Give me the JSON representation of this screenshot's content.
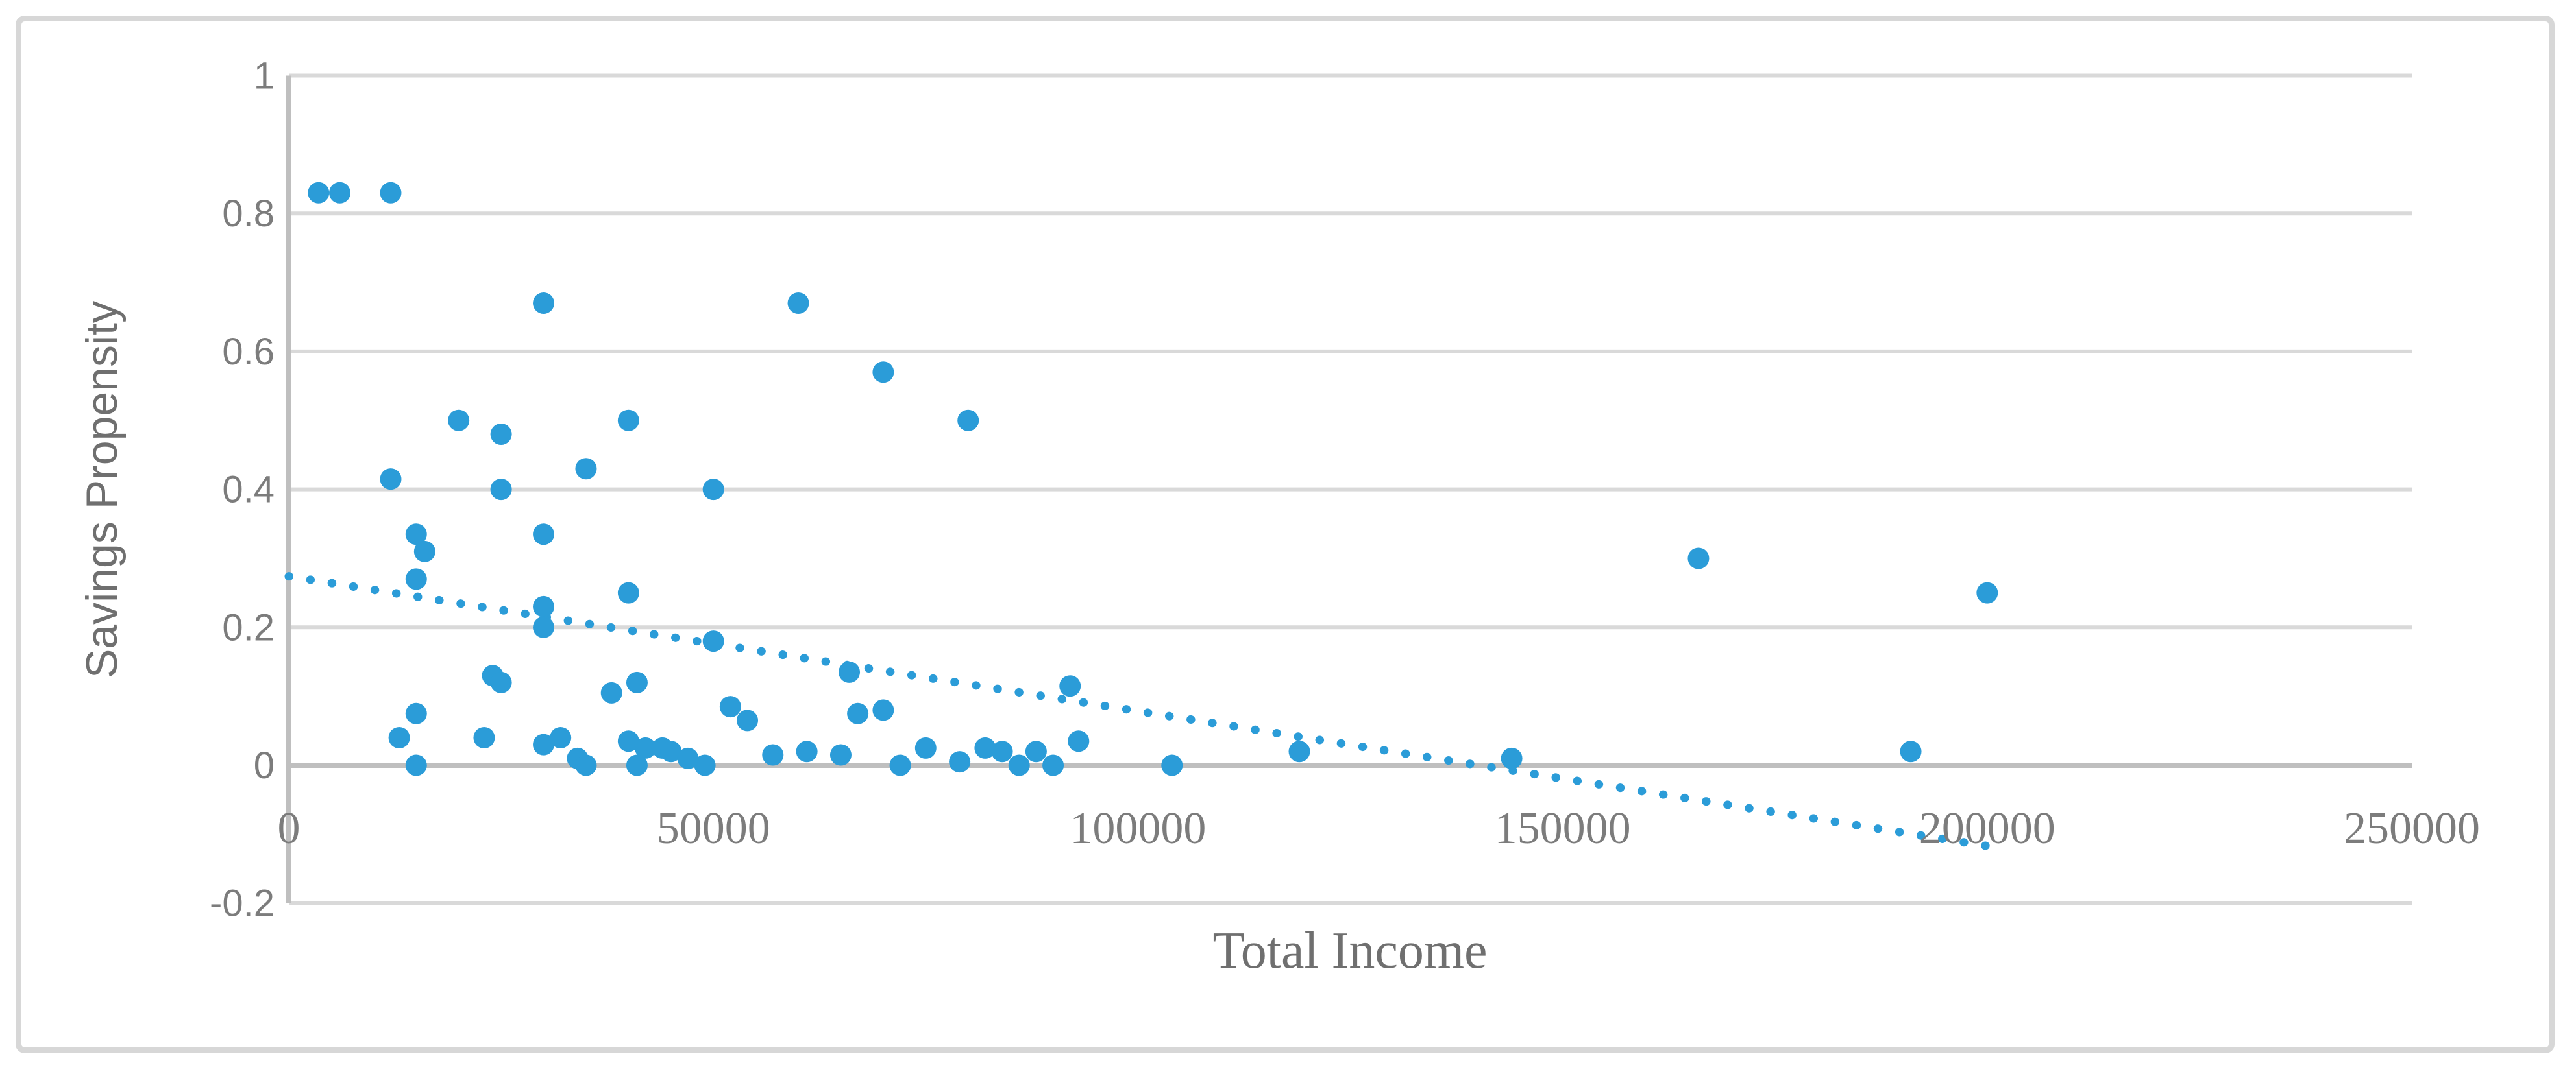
{
  "chart_data": {
    "type": "scatter",
    "title": "",
    "xlabel": "Total Income",
    "ylabel": "Savings Propensity",
    "xlim": [
      0,
      250000
    ],
    "ylim": [
      -0.2,
      1
    ],
    "x_ticks": [
      0,
      50000,
      100000,
      150000,
      200000,
      250000
    ],
    "x_tick_labels": [
      "0",
      "50000",
      "100000",
      "150000",
      "200000",
      "250000"
    ],
    "y_ticks": [
      1,
      0.8,
      0.6,
      0.4,
      0.2,
      0,
      -0.2
    ],
    "y_tick_labels": [
      "1",
      "0.8",
      "0.6",
      "0.4",
      "0.2",
      "0",
      "-0.2"
    ],
    "grid": "horizontal-only",
    "legend": "none",
    "series": [
      {
        "name": "Savings Propensity",
        "marker": "circle",
        "points": [
          [
            3500,
            0.83
          ],
          [
            6000,
            0.83
          ],
          [
            12000,
            0.83
          ],
          [
            30000,
            0.67
          ],
          [
            60000,
            0.67
          ],
          [
            70000,
            0.57
          ],
          [
            20000,
            0.5
          ],
          [
            40000,
            0.5
          ],
          [
            80000,
            0.5
          ],
          [
            25000,
            0.48
          ],
          [
            35000,
            0.43
          ],
          [
            12000,
            0.415
          ],
          [
            25000,
            0.4
          ],
          [
            50000,
            0.4
          ],
          [
            15000,
            0.335
          ],
          [
            30000,
            0.335
          ],
          [
            16000,
            0.31
          ],
          [
            166000,
            0.3
          ],
          [
            15000,
            0.27
          ],
          [
            40000,
            0.25
          ],
          [
            200000,
            0.25
          ],
          [
            30000,
            0.23
          ],
          [
            30000,
            0.2
          ],
          [
            50000,
            0.18
          ],
          [
            66000,
            0.135
          ],
          [
            24000,
            0.13
          ],
          [
            25000,
            0.12
          ],
          [
            41000,
            0.12
          ],
          [
            92000,
            0.115
          ],
          [
            38000,
            0.105
          ],
          [
            52000,
            0.085
          ],
          [
            70000,
            0.08
          ],
          [
            67000,
            0.075
          ],
          [
            15000,
            0.075
          ],
          [
            54000,
            0.065
          ],
          [
            13000,
            0.04
          ],
          [
            23000,
            0.04
          ],
          [
            32000,
            0.04
          ],
          [
            40000,
            0.035
          ],
          [
            93000,
            0.035
          ],
          [
            30000,
            0.03
          ],
          [
            42000,
            0.025
          ],
          [
            44000,
            0.025
          ],
          [
            75000,
            0.025
          ],
          [
            82000,
            0.025
          ],
          [
            45000,
            0.02
          ],
          [
            61000,
            0.02
          ],
          [
            84000,
            0.02
          ],
          [
            88000,
            0.02
          ],
          [
            119000,
            0.02
          ],
          [
            191000,
            0.02
          ],
          [
            57000,
            0.015
          ],
          [
            65000,
            0.015
          ],
          [
            34000,
            0.01
          ],
          [
            47000,
            0.01
          ],
          [
            144000,
            0.01
          ],
          [
            79000,
            0.005
          ],
          [
            15000,
            0.0
          ],
          [
            35000,
            0.0
          ],
          [
            41000,
            0.0
          ],
          [
            49000,
            0.0
          ],
          [
            72000,
            0.0
          ],
          [
            86000,
            0.0
          ],
          [
            90000,
            0.0
          ],
          [
            104000,
            0.0
          ]
        ]
      }
    ],
    "trendline": {
      "style": "dotted",
      "x_start": 0,
      "y_start": 0.274,
      "x_end": 200500,
      "y_end": -0.118
    },
    "colors": {
      "marker": "#2b9cd8",
      "trendline": "#2b9cd8",
      "gridline": "#d9d9d9",
      "axis_line": "#bfbfbf",
      "tick_text": "#7c7c7c",
      "title_text": "#6f6f6f",
      "frame_border": "#d7d7d7",
      "background": "#ffffff"
    }
  }
}
